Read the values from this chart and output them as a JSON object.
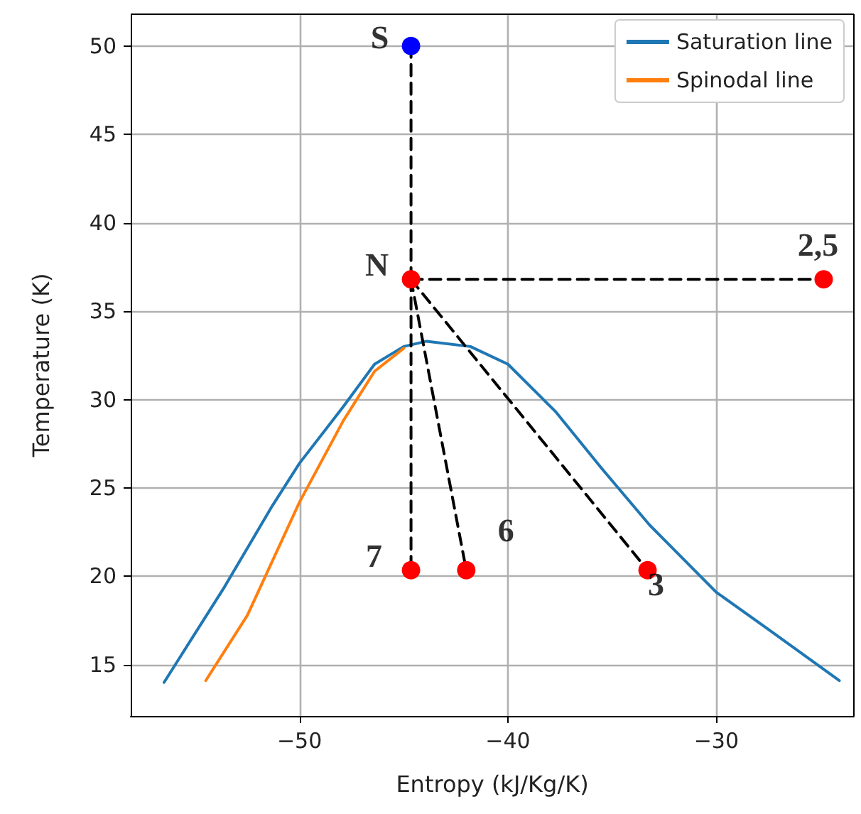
{
  "chart_data": {
    "type": "line",
    "xlabel": "Entropy (kJ/Kg/K)",
    "ylabel": "Temperature (K)",
    "xlim": [
      -58.1,
      -23.4
    ],
    "xticks": [
      -50,
      -40,
      -30
    ],
    "ylim": [
      12.1,
      51.8
    ],
    "yticks": [
      15,
      20,
      25,
      30,
      35,
      40,
      45,
      50
    ],
    "grid": true,
    "legend": "top right",
    "series": [
      {
        "name": "Saturation line",
        "color": "#1f77b4",
        "line_style": "solid",
        "marker": "none",
        "x": [
          -56.5,
          -53.6,
          -51.3,
          -50.0,
          -47.9,
          -46.4,
          -45.0,
          -43.9,
          -41.8,
          -40.0,
          -37.7,
          -35.5,
          -33.2,
          -30.0,
          -27.5,
          -24.1
        ],
        "values": [
          14.0,
          19.4,
          24.0,
          26.4,
          29.6,
          32.0,
          33.0,
          33.3,
          33.0,
          32.0,
          29.3,
          26.1,
          22.9,
          19.1,
          17.0,
          14.1
        ]
      },
      {
        "name": "Spinodal line",
        "color": "#ff7f0e",
        "line_style": "solid",
        "marker": "none",
        "x": [
          -54.5,
          -52.5,
          -50.0,
          -47.9,
          -46.4,
          -45.0
        ],
        "values": [
          14.1,
          17.8,
          24.2,
          28.8,
          31.6,
          32.9
        ]
      },
      {
        "color": "#000000",
        "line_style": "dashed",
        "marker": "none",
        "x": [
          -44.65,
          -44.65
        ],
        "values": [
          50,
          36.8
        ]
      },
      {
        "color": "#000000",
        "line_style": "dashed",
        "marker": "none",
        "x": [
          -44.65,
          -24.85
        ],
        "values": [
          36.8,
          36.8
        ]
      },
      {
        "color": "#000000",
        "line_style": "dashed",
        "marker": "none",
        "x": [
          -44.65,
          -44.65
        ],
        "values": [
          36.8,
          20.35
        ]
      },
      {
        "color": "#000000",
        "line_style": "dashed",
        "marker": "none",
        "x": [
          -44.65,
          -42.0
        ],
        "values": [
          36.8,
          20.35
        ]
      },
      {
        "color": "#000000",
        "line_style": "dashed",
        "marker": "none",
        "x": [
          -44.65,
          -33.3
        ],
        "values": [
          36.8,
          20.35
        ]
      },
      {
        "type": "scatter",
        "color": "#ff0000",
        "marker": "circle",
        "x": [
          -44.65,
          -24.85,
          -44.65,
          -42.0,
          -33.3
        ],
        "values": [
          36.8,
          36.8,
          20.35,
          20.35,
          20.35
        ]
      },
      {
        "type": "scatter",
        "color": "#0000ff",
        "marker": "circle",
        "x": [
          -44.65
        ],
        "values": [
          50
        ]
      }
    ],
    "annotations": [
      {
        "text": "S",
        "x": -44.65,
        "y": 50
      },
      {
        "text": "N",
        "x": -44.65,
        "y": 36.8
      },
      {
        "text": "2,5",
        "x": -24.85,
        "y": 36.8
      },
      {
        "text": "7",
        "x": -44.65,
        "y": 20.35
      },
      {
        "text": "6",
        "x": -42.0,
        "y": 20.35
      },
      {
        "text": "3",
        "x": -33.3,
        "y": 20.35
      }
    ]
  }
}
